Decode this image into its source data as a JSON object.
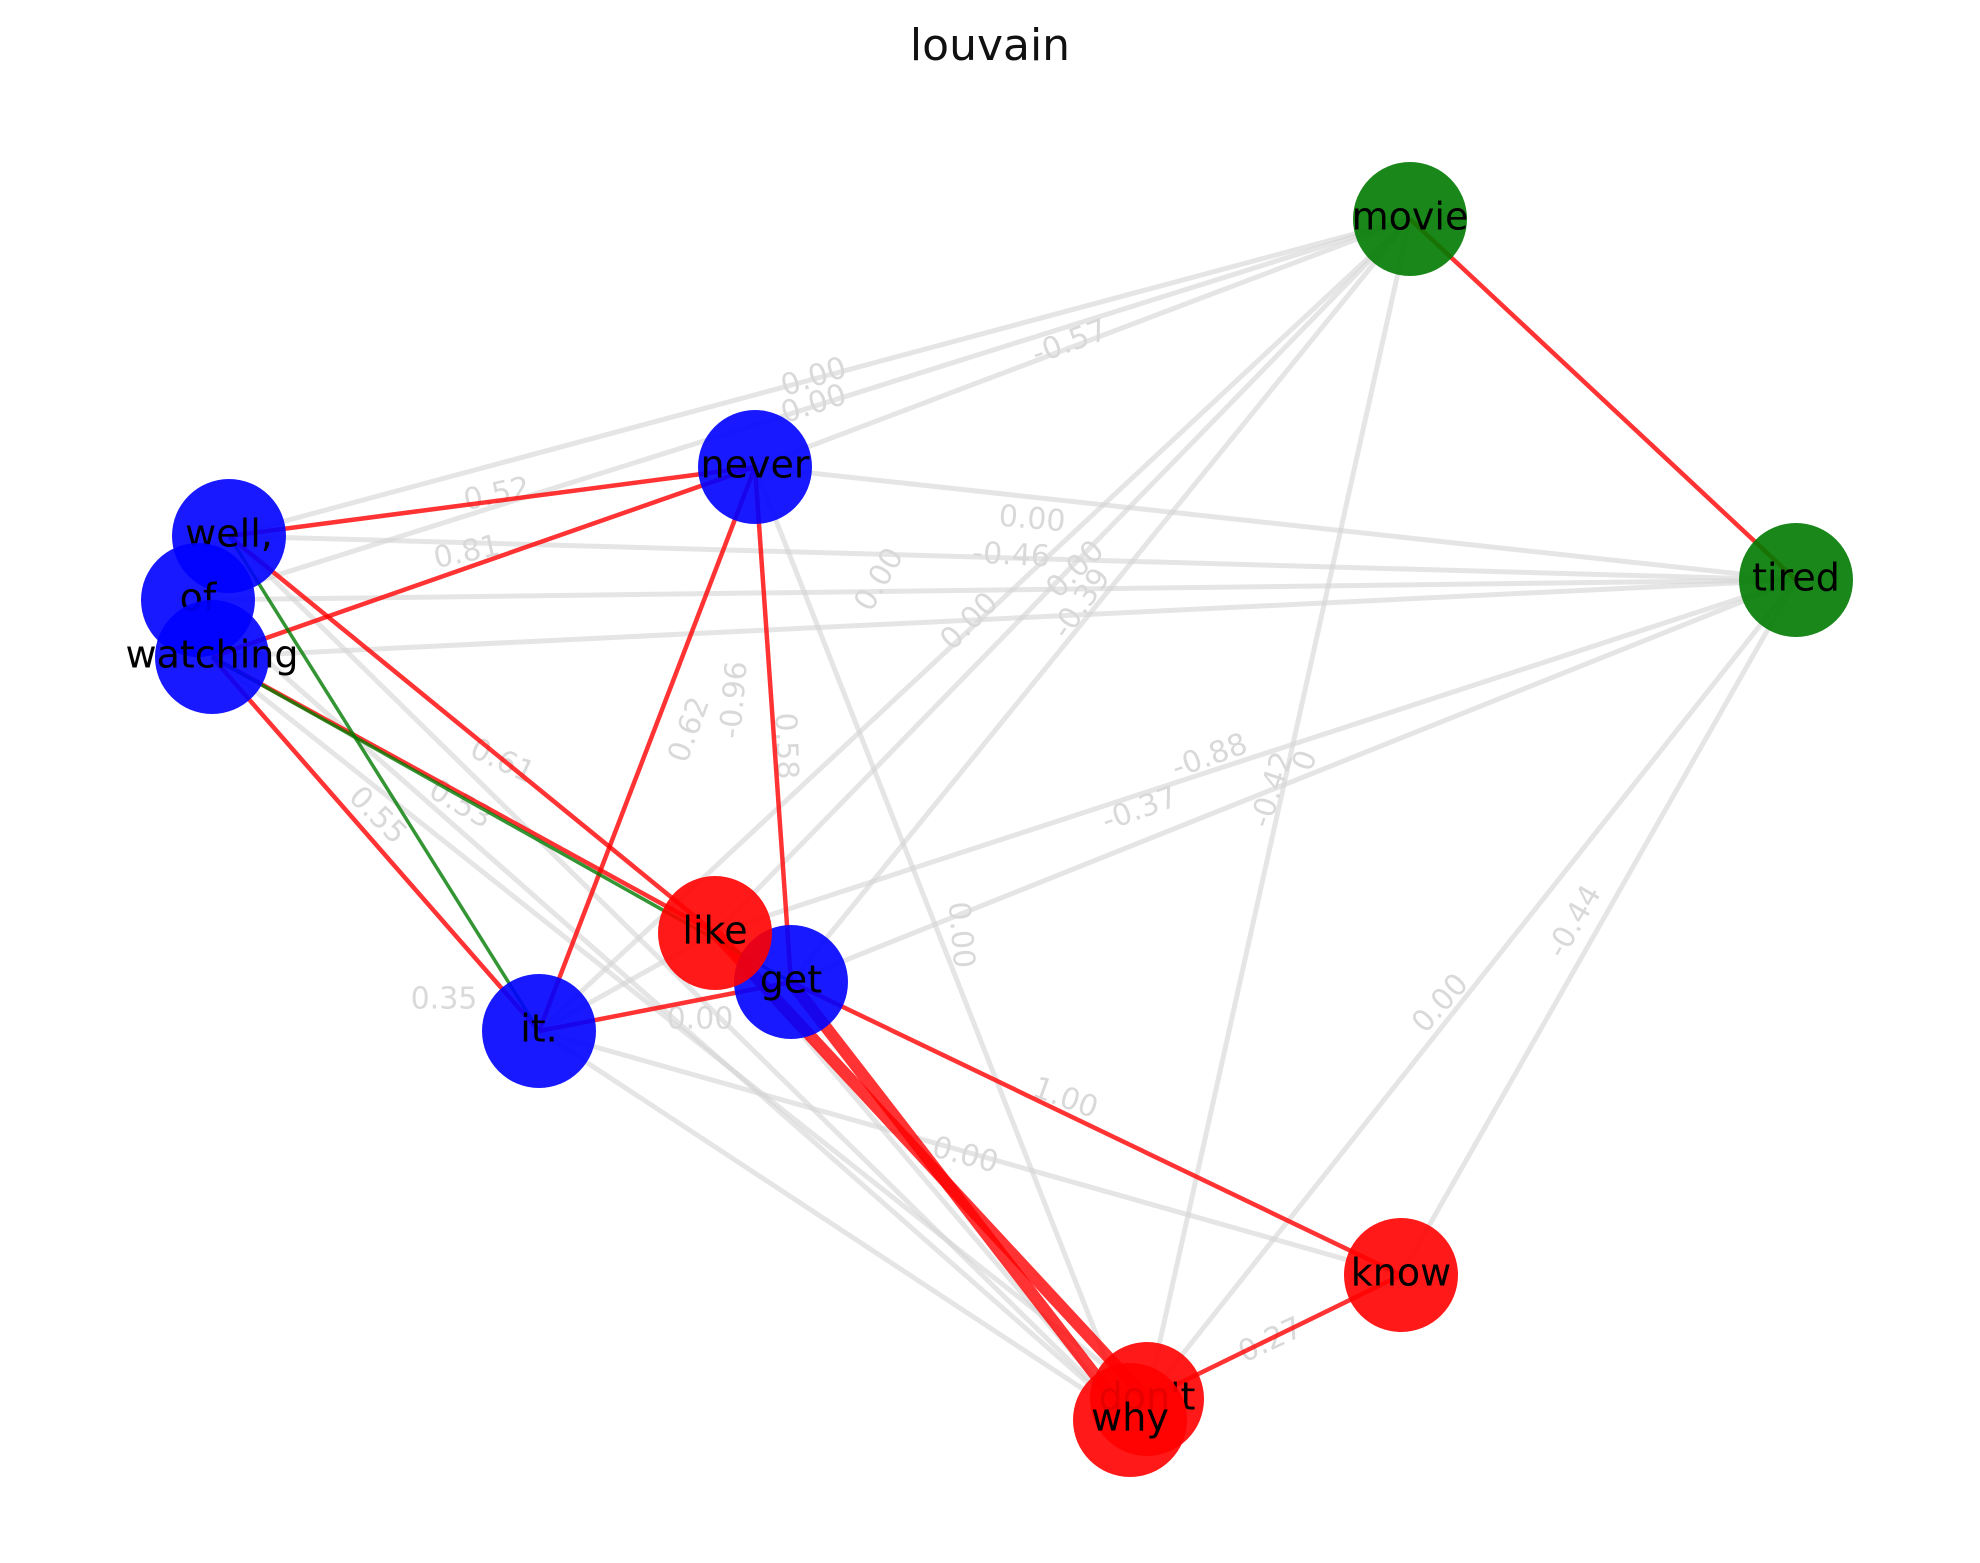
{
  "title": "louvain",
  "colors": {
    "blue": "#0000ff",
    "red": "#ff0000",
    "green": "#007a00",
    "gray_edge": "#d3d3d3"
  },
  "nodes": [
    {
      "id": "well,",
      "label": "well,",
      "group": "blue"
    },
    {
      "id": "of",
      "label": "of",
      "group": "blue"
    },
    {
      "id": "watching",
      "label": "watching",
      "group": "blue"
    },
    {
      "id": "never",
      "label": "never",
      "group": "blue"
    },
    {
      "id": "it.",
      "label": "it.",
      "group": "blue"
    },
    {
      "id": "get",
      "label": "get",
      "group": "blue"
    },
    {
      "id": "like",
      "label": "like",
      "group": "red"
    },
    {
      "id": "know",
      "label": "know",
      "group": "red"
    },
    {
      "id": "don't",
      "label": "don't",
      "group": "red"
    },
    {
      "id": "why",
      "label": "why",
      "group": "red"
    },
    {
      "id": "movie",
      "label": "movie",
      "group": "green"
    },
    {
      "id": "tired",
      "label": "tired",
      "group": "green"
    }
  ],
  "edges": [
    {
      "source": "movie",
      "target": "tired",
      "type": "red"
    },
    {
      "source": "well,",
      "target": "never",
      "type": "red"
    },
    {
      "source": "watching",
      "target": "never",
      "type": "red"
    },
    {
      "source": "never",
      "target": "it.",
      "type": "red"
    },
    {
      "source": "never",
      "target": "get",
      "type": "red"
    },
    {
      "source": "well,",
      "target": "like",
      "type": "red"
    },
    {
      "source": "watching",
      "target": "like",
      "type": "red"
    },
    {
      "source": "watching",
      "target": "it.",
      "type": "red"
    },
    {
      "source": "it.",
      "target": "get",
      "type": "red"
    },
    {
      "source": "get",
      "target": "know",
      "type": "red"
    },
    {
      "source": "get",
      "target": "why",
      "type": "red"
    },
    {
      "source": "like",
      "target": "don't",
      "type": "red"
    },
    {
      "source": "don't",
      "target": "know",
      "type": "red"
    },
    {
      "source": "well,",
      "target": "it.",
      "type": "green"
    },
    {
      "source": "watching",
      "target": "get",
      "type": "green"
    },
    {
      "source": "well,",
      "target": "movie",
      "type": "gray",
      "label": "0.00"
    },
    {
      "source": "of",
      "target": "movie",
      "type": "gray",
      "label": "0.00"
    },
    {
      "source": "never",
      "target": "movie",
      "type": "gray",
      "label": "-0.57"
    },
    {
      "source": "well,",
      "target": "tired",
      "type": "gray",
      "label": "-0.46"
    },
    {
      "source": "of",
      "target": "tired",
      "type": "gray"
    },
    {
      "source": "watching",
      "target": "tired",
      "type": "gray"
    },
    {
      "source": "never",
      "target": "tired",
      "type": "gray",
      "label": "0.00"
    },
    {
      "source": "like",
      "target": "movie",
      "type": "gray",
      "label": "0.00"
    },
    {
      "source": "get",
      "target": "movie",
      "type": "gray",
      "label": "-0.39"
    },
    {
      "source": "it.",
      "target": "movie",
      "type": "gray",
      "label": "0.00"
    },
    {
      "source": "don't",
      "target": "movie",
      "type": "gray",
      "label": "-0.42"
    },
    {
      "source": "like",
      "target": "tired",
      "type": "gray",
      "label": "-0.88"
    },
    {
      "source": "get",
      "target": "tired",
      "type": "gray",
      "label": "-0.37"
    },
    {
      "source": "know",
      "target": "tired",
      "type": "gray",
      "label": "-0.44"
    },
    {
      "source": "don't",
      "target": "tired",
      "type": "gray",
      "label": "0.00"
    },
    {
      "source": "it.",
      "target": "like",
      "type": "gray",
      "label": "-0.96"
    },
    {
      "source": "never",
      "target": "why",
      "type": "gray",
      "label": "0.00"
    },
    {
      "source": "it.",
      "target": "know",
      "type": "gray",
      "label": "0.00"
    },
    {
      "source": "of",
      "target": "why",
      "type": "gray"
    },
    {
      "source": "watching",
      "target": "don't",
      "type": "gray"
    },
    {
      "source": "well,",
      "target": "why",
      "type": "gray"
    },
    {
      "source": "it.",
      "target": "why",
      "type": "gray"
    },
    {
      "source": "like",
      "target": "why",
      "type": "gray"
    }
  ],
  "faint_labels": [
    "0.00",
    "0.00",
    "-0.57",
    "0.52",
    "0.00",
    "0.81",
    "-0.46",
    "0.00",
    "0.00",
    "-0.39",
    "0.00",
    "-0.96",
    "0.58",
    "0.62",
    "0.61",
    "0.53",
    "0.55",
    "-0.37",
    "-0.88",
    "-0.42",
    "0",
    "-0.44",
    "0.00",
    "0.00",
    "0.00",
    "1.00",
    "0.27",
    "0.35",
    "0.00"
  ]
}
